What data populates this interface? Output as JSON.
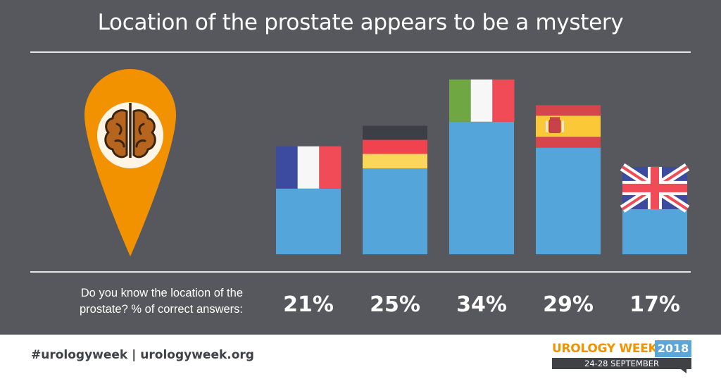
{
  "title": "Location of the prostate appears to be a mystery",
  "question": "Do you know the location of the prostate? % of correct answers:",
  "footer": {
    "hashtag": "#urologyweek | urologyweek.org",
    "logo_name": "UROLOGY WEEK",
    "logo_year": "2018",
    "logo_dates": "24-28 SEPTEMBER"
  },
  "colors": {
    "background": "#56585d",
    "bar": "#54a5d9",
    "pin": "#f39200",
    "brain": "#b5651d"
  },
  "icons": [
    "map-pin-icon",
    "brain-icon"
  ],
  "chart_data": {
    "type": "bar",
    "categories": [
      "France",
      "Germany",
      "Italy",
      "Spain",
      "United Kingdom"
    ],
    "values": [
      21,
      25,
      34,
      29,
      17
    ],
    "labels": [
      "21%",
      "25%",
      "34%",
      "29%",
      "17%"
    ],
    "flags": [
      "france-flag-icon",
      "germany-flag-icon",
      "italy-flag-icon",
      "spain-flag-icon",
      "uk-flag-icon"
    ],
    "ylim": [
      0,
      100
    ],
    "grid": false,
    "legend": "none"
  }
}
